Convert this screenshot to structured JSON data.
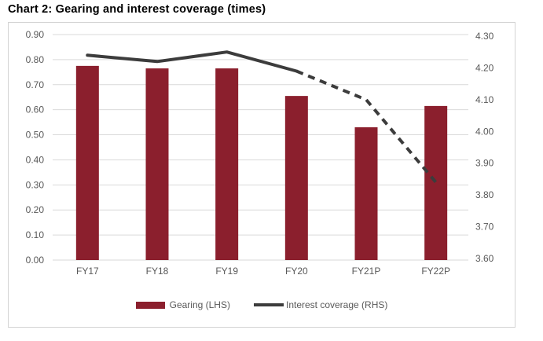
{
  "title": "Chart 2: Gearing and interest coverage (times)",
  "legend": {
    "items": [
      {
        "label": "Gearing (LHS)",
        "swatch": "bar"
      },
      {
        "label": "Interest coverage (RHS)",
        "swatch": "line"
      }
    ]
  },
  "colors": {
    "bar": "#8B1F2D",
    "line": "#3C3C3C",
    "grid": "#D9D9D9",
    "axis_text": "#595959",
    "frame_border": "#D3D3D3",
    "title_text": "#000000",
    "background": "#FFFFFF"
  },
  "chart_data": {
    "type": "combo",
    "title": "Chart 2: Gearing and interest coverage (times)",
    "categories": [
      "FY17",
      "FY18",
      "FY19",
      "FY20",
      "FY21P",
      "FY22P"
    ],
    "series": [
      {
        "name": "Gearing (LHS)",
        "type": "bar",
        "axis": "left",
        "values": [
          0.775,
          0.765,
          0.765,
          0.655,
          0.53,
          0.615
        ]
      },
      {
        "name": "Interest coverage (RHS)",
        "type": "line",
        "axis": "right",
        "values": [
          4.24,
          4.22,
          4.25,
          4.19,
          4.1,
          3.84
        ],
        "solid_through_index": 3,
        "dashed_from_index": 3
      }
    ],
    "left_axis": {
      "min": 0.0,
      "max": 0.9,
      "step": 0.1,
      "tick_labels": [
        "0.00",
        "0.10",
        "0.20",
        "0.30",
        "0.40",
        "0.50",
        "0.60",
        "0.70",
        "0.80",
        "0.90"
      ]
    },
    "right_axis": {
      "min": 3.6,
      "max": 4.3,
      "step": 0.1,
      "tick_labels": [
        "3.60",
        "3.70",
        "3.80",
        "3.90",
        "4.00",
        "4.10",
        "4.20",
        "4.30"
      ]
    },
    "grid": "horizontal",
    "legend_position": "bottom"
  }
}
